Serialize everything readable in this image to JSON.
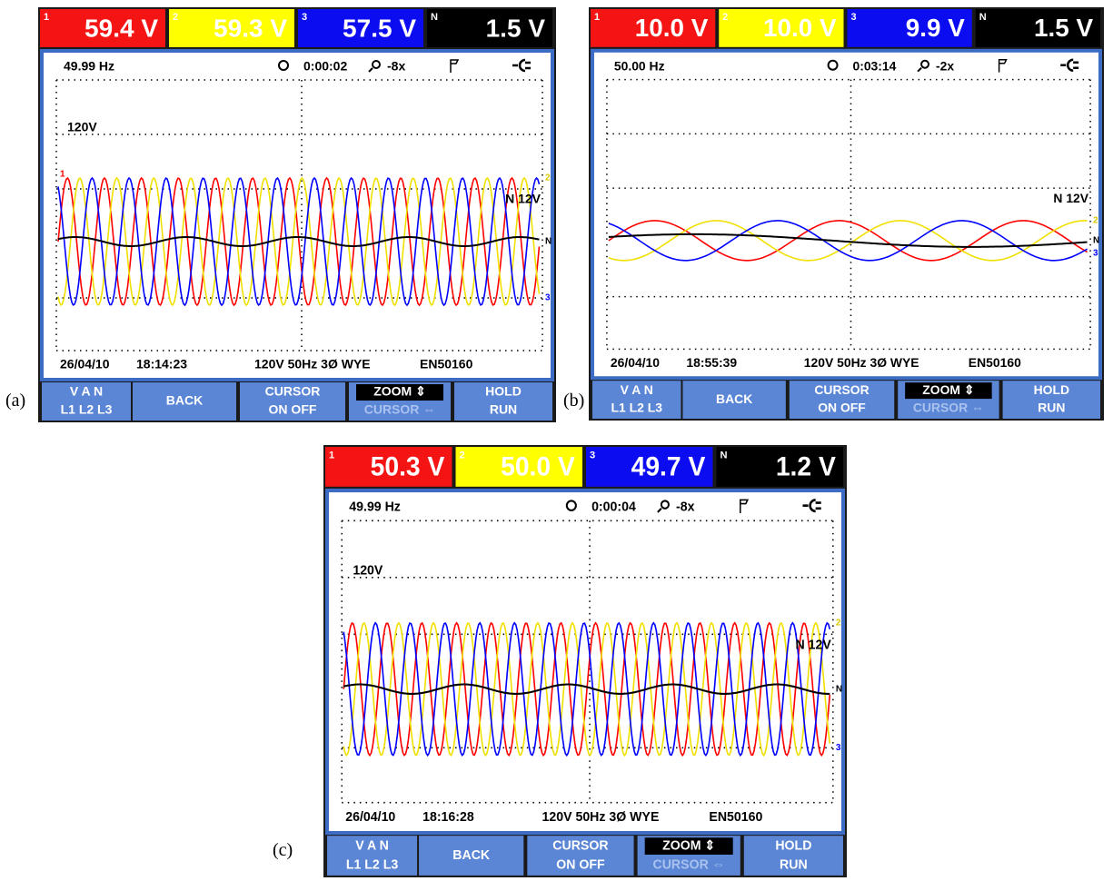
{
  "panels": [
    {
      "label": "(a)",
      "readings": [
        {
          "index": "1",
          "value": "59.4 V"
        },
        {
          "index": "2",
          "value": "59.3 V"
        },
        {
          "index": "3",
          "value": "57.5 V"
        },
        {
          "index": "N",
          "value": "1.5 V"
        }
      ],
      "header": {
        "frequency": "49.99 Hz",
        "elapsed": "0:00:02",
        "zoom": "-8x"
      },
      "plot": {
        "scale": "120V",
        "neutral_scale": "N 12V",
        "trace_labels": [
          "1",
          "2",
          "3",
          "N"
        ]
      },
      "status": {
        "date": "26/04/10",
        "time": "18:14:23",
        "config": "120V 50Hz 3Ø WYE",
        "standard": "EN50160"
      },
      "softkeys": [
        [
          "V A N",
          "L1 L2 L3"
        ],
        [
          "BACK"
        ],
        [
          "CURSOR",
          "ON OFF"
        ],
        [
          "ZOOM ⇕",
          "CURSOR ⇔"
        ],
        [
          "HOLD",
          "RUN"
        ]
      ]
    },
    {
      "label": "(b)",
      "readings": [
        {
          "index": "1",
          "value": "10.0 V"
        },
        {
          "index": "2",
          "value": "10.0 V"
        },
        {
          "index": "3",
          "value": "9.9 V"
        },
        {
          "index": "N",
          "value": "1.5 V"
        }
      ],
      "header": {
        "frequency": "50.00 Hz",
        "elapsed": "0:03:14",
        "zoom": "-2x"
      },
      "plot": {
        "neutral_scale": "N 12V",
        "trace_labels": [
          "2",
          "N",
          "3"
        ]
      },
      "status": {
        "date": "26/04/10",
        "time": "18:55:39",
        "config": "120V 50Hz 3Ø WYE",
        "standard": "EN50160"
      },
      "softkeys": [
        [
          "V A N",
          "L1 L2 L3"
        ],
        [
          "BACK"
        ],
        [
          "CURSOR",
          "ON OFF"
        ],
        [
          "ZOOM ⇕",
          "CURSOR ⇔"
        ],
        [
          "HOLD",
          "RUN"
        ]
      ]
    },
    {
      "label": "(c)",
      "readings": [
        {
          "index": "1",
          "value": "50.3 V"
        },
        {
          "index": "2",
          "value": "50.0 V"
        },
        {
          "index": "3",
          "value": "49.7 V"
        },
        {
          "index": "N",
          "value": "1.2 V"
        }
      ],
      "header": {
        "frequency": "49.99 Hz",
        "elapsed": "0:00:04",
        "zoom": "-8x"
      },
      "plot": {
        "scale": "120V",
        "neutral_scale": "N 12V",
        "trace_labels": [
          "2",
          "N",
          "3"
        ]
      },
      "status": {
        "date": "26/04/10",
        "time": "18:16:28",
        "config": "120V 50Hz 3Ø WYE",
        "standard": "EN50160"
      },
      "softkeys": [
        [
          "V A N",
          "L1 L2 L3"
        ],
        [
          "BACK"
        ],
        [
          "CURSOR",
          "ON OFF"
        ],
        [
          "ZOOM ⇕",
          "CURSOR ⇔"
        ],
        [
          "HOLD",
          "RUN"
        ]
      ]
    }
  ]
}
